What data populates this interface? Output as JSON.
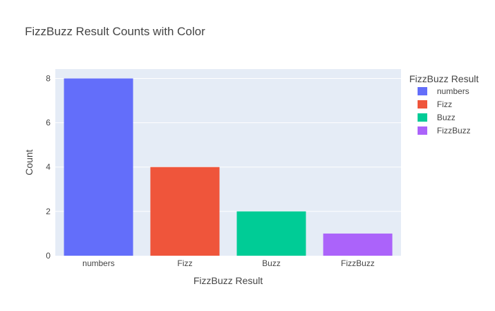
{
  "chart_data": {
    "type": "bar",
    "title": "FizzBuzz Result Counts with Color",
    "xlabel": "FizzBuzz Result",
    "ylabel": "Count",
    "categories": [
      "numbers",
      "Fizz",
      "Buzz",
      "FizzBuzz"
    ],
    "series": [
      {
        "name": "numbers",
        "category": "numbers",
        "value": 8,
        "color": "#636efa"
      },
      {
        "name": "Fizz",
        "category": "Fizz",
        "value": 4,
        "color": "#EF553B"
      },
      {
        "name": "Buzz",
        "category": "Buzz",
        "value": 2,
        "color": "#00cc96"
      },
      {
        "name": "FizzBuzz",
        "category": "FizzBuzz",
        "value": 1,
        "color": "#ab63fa"
      }
    ],
    "ylim": [
      0,
      8.42
    ],
    "yticks": [
      0,
      2,
      4,
      6,
      8
    ],
    "grid": true,
    "legend": {
      "title": "FizzBuzz Result",
      "position": "right"
    },
    "plot_background": "#e5ecf6",
    "grid_color": "#ffffff"
  }
}
